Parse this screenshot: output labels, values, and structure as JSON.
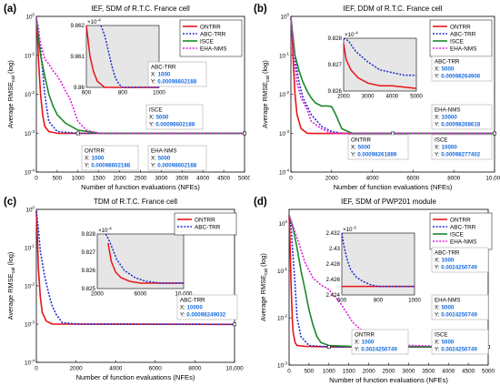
{
  "figure": {
    "background": "#ffffff"
  },
  "colors": {
    "ONTRR": "#e8141b",
    "ABC-TRR": "#1f2bd0",
    "ISCE": "#1a8a2a",
    "EHA-NMS": "#e11ee0",
    "annotation_text": "#1a6fe0",
    "inset_bg": "#e6e6e6",
    "marker_fill": "#ffffff"
  },
  "chart_data": [
    {
      "panel_label": "(a)",
      "type": "line",
      "title": "IEF, SDM of R.T.C. France cell",
      "xlabel": "Number of function evaluations (NFEs)",
      "ylabel": "Average RMSE_cal (log)",
      "xscale": "linear",
      "yscale": "log",
      "xlim": [
        0,
        5000
      ],
      "ylim": [
        0.0001,
        1
      ],
      "xticks": [
        "0",
        "500",
        "1000",
        "1500",
        "2000",
        "2500",
        "3000",
        "3500",
        "4000",
        "4500",
        "5000"
      ],
      "yticks": [
        "10^-4",
        "10^-3",
        "10^-2",
        "10^-1",
        "10^0"
      ],
      "grid": false,
      "legend": {
        "placement": "top-right",
        "entries": [
          "ONTRR",
          "ABC-TRR",
          "ISCE",
          "EHA-NMS"
        ]
      },
      "series": [
        {
          "name": "ONTRR",
          "style": "solid",
          "x": [
            0,
            20,
            50,
            100,
            150,
            200,
            300,
            500,
            1000,
            5000
          ],
          "y": [
            0.8,
            0.5,
            0.08,
            0.01,
            0.003,
            0.0015,
            0.0011,
            0.00099,
            0.00098602188,
            0.00098602188
          ]
        },
        {
          "name": "ABC-TRR",
          "style": "dotted",
          "x": [
            0,
            50,
            100,
            150,
            200,
            300,
            500,
            1000,
            5000
          ],
          "y": [
            0.9,
            0.5,
            0.15,
            0.04,
            0.01,
            0.002,
            0.0011,
            0.00098602188,
            0.00098602188
          ]
        },
        {
          "name": "ISCE",
          "style": "solid",
          "x": [
            0,
            100,
            200,
            300,
            400,
            500,
            700,
            1000,
            1500,
            2000,
            5000
          ],
          "y": [
            0.9,
            0.1,
            0.03,
            0.01,
            0.005,
            0.003,
            0.0018,
            0.0012,
            0.001,
            0.00098602188,
            0.00098602188
          ]
        },
        {
          "name": "EHA-NMS",
          "style": "dotted",
          "x": [
            0,
            100,
            200,
            300,
            400,
            500,
            600,
            700,
            800,
            900,
            1000,
            1200,
            1500,
            2000,
            5000
          ],
          "y": [
            0.9,
            0.2,
            0.08,
            0.06,
            0.04,
            0.03,
            0.02,
            0.012,
            0.008,
            0.004,
            0.002,
            0.0012,
            0.001,
            0.00098602188,
            0.00098602188
          ]
        }
      ],
      "inset": {
        "xlim": [
          600,
          1000
        ],
        "ylim": [
          9.86,
          9.862
        ],
        "xticks": [
          "600",
          "800",
          "1000"
        ],
        "yticks": [
          "9.86",
          "9.861",
          "9.862"
        ],
        "exponent": "×10^-4",
        "series": [
          {
            "name": "ONTRR",
            "style": "solid",
            "x": [
              600,
              610,
              620,
              640,
              660,
              680,
              700,
              1000
            ],
            "y": [
              9.8622,
              9.8615,
              9.861,
              9.8605,
              9.8602,
              9.8601,
              9.86,
              9.86
            ]
          },
          {
            "name": "ABC-TRR",
            "style": "dotted",
            "x": [
              680,
              700,
              720,
              740,
              760,
              780,
              800,
              1000
            ],
            "y": [
              9.8622,
              9.8617,
              9.8612,
              9.8607,
              9.8603,
              9.8601,
              9.86,
              9.86
            ]
          }
        ]
      },
      "annotations": [
        {
          "series": "ABC-TRR",
          "lines": [
            "ABC-TRR",
            "X: 1000",
            "Y: 0.00098602188"
          ]
        },
        {
          "series": "ISCE",
          "lines": [
            "ISCE",
            "X: 5000",
            "Y: 0.00098602188"
          ]
        },
        {
          "series": "ONTRR",
          "lines": [
            "ONTRR",
            "X: 1000",
            "Y: 0.00098602188"
          ]
        },
        {
          "series": "EHA-NMS",
          "lines": [
            "EHA-NMS",
            "X: 5000",
            "Y: 0.00098602188"
          ]
        }
      ]
    },
    {
      "panel_label": "(b)",
      "type": "line",
      "title": "IEF, DDM of R.T.C. France cell",
      "xlabel": "Number of function evaluations (NFEs)",
      "ylabel": "Average RMSE_cal (log)",
      "xscale": "linear",
      "yscale": "log",
      "xlim": [
        0,
        10000
      ],
      "ylim": [
        0.0001,
        1
      ],
      "xticks": [
        "0",
        "2000",
        "4000",
        "6000",
        "8000",
        "10,000"
      ],
      "yticks": [
        "10^-4",
        "10^-3",
        "10^-2",
        "10^-1",
        "10^0"
      ],
      "grid": false,
      "legend": {
        "placement": "top-right",
        "entries": [
          "ONTRR",
          "ABC-TRR",
          "ISCE",
          "EHA-NMS"
        ]
      },
      "series": [
        {
          "name": "ONTRR",
          "style": "solid",
          "x": [
            0,
            50,
            100,
            200,
            300,
            500,
            800,
            1000,
            10000
          ],
          "y": [
            0.9,
            0.5,
            0.1,
            0.01,
            0.003,
            0.0013,
            0.001,
            0.00098261889,
            0.00098261889
          ]
        },
        {
          "name": "ABC-TRR",
          "style": "dotted",
          "x": [
            0,
            100,
            200,
            400,
            600,
            1000,
            1500,
            2000,
            2500,
            3000,
            5000,
            10000
          ],
          "y": [
            0.9,
            0.3,
            0.08,
            0.02,
            0.008,
            0.003,
            0.0015,
            0.0011,
            0.001,
            0.00098264906,
            0.00098264906,
            0.00098264906
          ]
        },
        {
          "name": "ISCE",
          "style": "solid",
          "x": [
            0,
            200,
            400,
            600,
            800,
            1000,
            1200,
            1500,
            1800,
            2000,
            2200,
            2500,
            3000,
            5000,
            10000
          ],
          "y": [
            0.9,
            0.1,
            0.04,
            0.02,
            0.012,
            0.008,
            0.006,
            0.005,
            0.005,
            0.0048,
            0.003,
            0.0013,
            0.001,
            0.00098277402,
            0.00098277402
          ]
        },
        {
          "name": "EHA-NMS",
          "style": "dotted",
          "x": [
            0,
            100,
            200,
            300,
            500,
            800,
            1000,
            1500,
            2000,
            3000,
            5000,
            10000
          ],
          "y": [
            0.9,
            0.2,
            0.05,
            0.02,
            0.008,
            0.004,
            0.002,
            0.0013,
            0.001,
            0.00098268618,
            0.00098268618,
            0.00098268618
          ]
        }
      ],
      "inset": {
        "xlim": [
          2000,
          5000
        ],
        "ylim": [
          9.826,
          9.828
        ],
        "xticks": [
          "2000",
          "3000",
          "4000",
          "5000"
        ],
        "yticks": [
          "9.826",
          "9.827",
          "9.828"
        ],
        "exponent": "×10^-4",
        "series": [
          {
            "name": "ONTRR",
            "style": "solid",
            "x": [
              2000,
              2100,
              2300,
              2600,
              3000,
              3500,
              4000,
              5000
            ],
            "y": [
              9.8278,
              9.8272,
              9.8268,
              9.8265,
              9.8263,
              9.8262,
              9.8262,
              9.8261
            ]
          },
          {
            "name": "ABC-TRR",
            "style": "dotted",
            "x": [
              2000,
              2200,
              2500,
              3000,
              3500,
              4000,
              4500,
              5000
            ],
            "y": [
              9.8283,
              9.8279,
              9.8275,
              9.8271,
              9.8268,
              9.8267,
              9.8266,
              9.8266
            ]
          }
        ]
      },
      "annotations": [
        {
          "series": "ABC-TRR",
          "lines": [
            "ABC-TRR",
            "X: 5000",
            "Y: 0.00098264906"
          ]
        },
        {
          "series": "EHA-NMS",
          "lines": [
            "EHA-NMS",
            "X: 10000",
            "Y: 0.00098268618"
          ]
        },
        {
          "series": "ONTRR",
          "lines": [
            "ONTRR",
            "X: 5000",
            "Y: 0.00098261889"
          ]
        },
        {
          "series": "ISCE",
          "lines": [
            "ISCE",
            "X: 10000",
            "Y: 0.00098277402"
          ]
        }
      ]
    },
    {
      "panel_label": "(c)",
      "type": "line",
      "title": "TDM of R.T.C. France cell",
      "xlabel": "Number of function evaluations (NFEs)",
      "ylabel": "Average RMSE_cal (log)",
      "xscale": "linear",
      "yscale": "log",
      "xlim": [
        0,
        10000
      ],
      "ylim": [
        0.0001,
        1
      ],
      "xticks": [
        "0",
        "2000",
        "4000",
        "6000",
        "8000",
        "10,000"
      ],
      "yticks": [
        "10^-4",
        "10^-3",
        "10^-2",
        "10^-1",
        "10^0"
      ],
      "grid": false,
      "legend": {
        "placement": "top-right",
        "entries": [
          "ONTRR",
          "ABC-TRR"
        ]
      },
      "series": [
        {
          "name": "ONTRR",
          "style": "solid",
          "x": [
            0,
            50,
            100,
            200,
            300,
            500,
            800,
            10000
          ],
          "y": [
            0.9,
            0.2,
            0.03,
            0.005,
            0.002,
            0.0012,
            0.001,
            0.00098250846
          ]
        },
        {
          "name": "ABC-TRR",
          "style": "dotted",
          "x": [
            0,
            100,
            200,
            400,
            600,
            800,
            1000,
            1300,
            2000,
            10000
          ],
          "y": [
            0.9,
            0.3,
            0.08,
            0.02,
            0.007,
            0.003,
            0.0018,
            0.0011,
            0.001,
            0.00098249032
          ]
        }
      ],
      "inset": {
        "xlim": [
          2000,
          10000
        ],
        "ylim": [
          9.825,
          9.828
        ],
        "xticks": [
          "2000",
          "6000",
          "10,000"
        ],
        "yticks": [
          "9.825",
          "9.826",
          "9.827",
          "9.828"
        ],
        "exponent": "×10^-4",
        "series": [
          {
            "name": "ONTRR",
            "style": "solid",
            "x": [
              3000,
              3300,
              3700,
              4200,
              5000,
              6000,
              8000,
              10000
            ],
            "y": [
              9.8275,
              9.8265,
              9.8259,
              9.8256,
              9.8254,
              9.8253,
              9.8253,
              9.8253
            ]
          },
          {
            "name": "ABC-TRR",
            "style": "dotted",
            "x": [
              2800,
              3200,
              3800,
              4500,
              5500,
              6500,
              8000,
              10000
            ],
            "y": [
              9.8285,
              9.8275,
              9.8266,
              9.826,
              9.8256,
              9.8254,
              9.8253,
              9.8253
            ]
          }
        ]
      },
      "annotations": [
        {
          "series": "ABC-TRR",
          "lines": [
            "ABC-TRR",
            "X: 10000",
            "Y: 0.00098249032"
          ]
        }
      ]
    },
    {
      "panel_label": "(d)",
      "type": "line",
      "title": "IEF, SDM of PWP201 module",
      "xlabel": "Number of function evaluations (NFEs)",
      "ylabel": "Average RMSE_cal (log)",
      "xscale": "linear",
      "yscale": "log",
      "xlim": [
        0,
        5000
      ],
      "ylim": [
        0.001,
        2
      ],
      "xticks": [
        "0",
        "500",
        "1000",
        "1500",
        "2000",
        "2500",
        "3000",
        "3500",
        "4000",
        "4500",
        "5000"
      ],
      "yticks": [
        "10^-3",
        "10^-2",
        "10^-1",
        "10^0"
      ],
      "grid": false,
      "legend": {
        "placement": "top-right",
        "entries": [
          "ONTRR",
          "ABC-TRR",
          "ISCE",
          "EHA-NMS"
        ]
      },
      "series": [
        {
          "name": "ONTRR",
          "style": "solid",
          "x": [
            0,
            20,
            50,
            80,
            100,
            150,
            200,
            400,
            1000,
            5000
          ],
          "y": [
            1.5,
            0.5,
            0.05,
            0.01,
            0.005,
            0.003,
            0.0026,
            0.0025,
            0.0024250749,
            0.0024250749
          ]
        },
        {
          "name": "ABC-TRR",
          "style": "dotted",
          "x": [
            0,
            50,
            100,
            150,
            200,
            300,
            500,
            1000,
            5000
          ],
          "y": [
            1.5,
            0.8,
            0.2,
            0.05,
            0.01,
            0.004,
            0.0026,
            0.0024250749,
            0.0024250749
          ]
        },
        {
          "name": "ISCE",
          "style": "solid",
          "x": [
            0,
            100,
            200,
            300,
            400,
            500,
            600,
            700,
            800,
            1000,
            1500,
            5000
          ],
          "y": [
            1.5,
            0.8,
            0.3,
            0.1,
            0.04,
            0.015,
            0.007,
            0.004,
            0.003,
            0.0026,
            0.0025,
            0.0024250749
          ]
        },
        {
          "name": "EHA-NMS",
          "style": "dotted",
          "x": [
            0,
            200,
            400,
            600,
            800,
            1000,
            1300,
            1600,
            2000,
            2500,
            3000,
            5000
          ],
          "y": [
            1.5,
            0.5,
            0.15,
            0.07,
            0.05,
            0.04,
            0.02,
            0.008,
            0.004,
            0.003,
            0.0026,
            0.0024250749
          ]
        }
      ],
      "inset": {
        "xlim": [
          600,
          1000
        ],
        "ylim": [
          2.424,
          2.432
        ],
        "xticks": [
          "600",
          "800",
          "1000"
        ],
        "yticks": [
          "2.424",
          "2.426",
          "2.428",
          "2.43",
          "2.432"
        ],
        "exponent": "×10^-3",
        "series": [
          {
            "name": "ONTRR",
            "style": "solid",
            "x": [
              600,
              1000
            ],
            "y": [
              2.4251,
              2.4251
            ]
          },
          {
            "name": "ABC-TRR",
            "style": "dotted",
            "x": [
              600,
              610,
              630,
              650,
              680,
              720,
              760,
              800,
              1000
            ],
            "y": [
              2.4325,
              2.4305,
              2.4285,
              2.4272,
              2.4263,
              2.4257,
              2.4253,
              2.4251,
              2.4251
            ]
          }
        ]
      },
      "annotations": [
        {
          "series": "ABC-TRR",
          "lines": [
            "ABC-TRR",
            "X: 1000",
            "Y: 0.0024250749"
          ]
        },
        {
          "series": "EHA-NMS",
          "lines": [
            "EHA-NMS",
            "X: 5000",
            "Y: 0.0024250749"
          ]
        },
        {
          "series": "ONTRR",
          "lines": [
            "ONTRR",
            "X: 1000",
            "Y: 0.0024250749"
          ]
        },
        {
          "series": "ISCE",
          "lines": [
            "ISCE",
            "X: 5000",
            "Y: 0.0024250749"
          ]
        }
      ]
    }
  ]
}
